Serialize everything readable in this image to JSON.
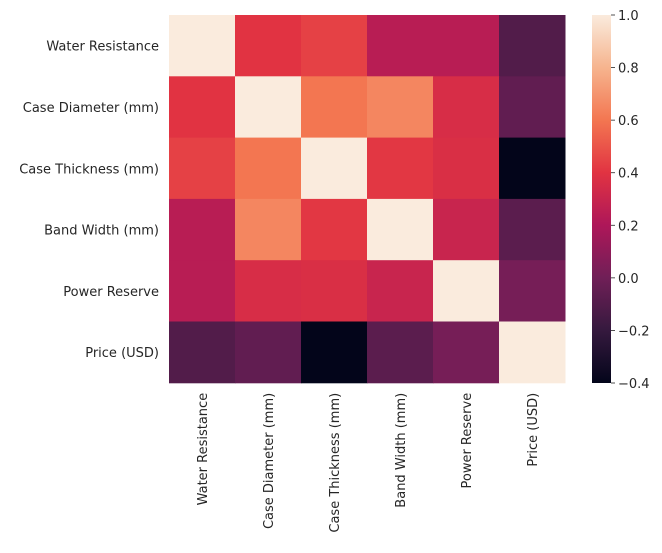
{
  "chart_data": {
    "type": "heatmap",
    "title": "",
    "xlabel": "",
    "ylabel": "",
    "x_categories": [
      "Water Resistance",
      "Case Diameter (mm)",
      "Case Thickness (mm)",
      "Band Width (mm)",
      "Power Reserve",
      "Price (USD)"
    ],
    "y_categories": [
      "Water Resistance",
      "Case Diameter (mm)",
      "Case Thickness (mm)",
      "Band Width (mm)",
      "Power Reserve",
      "Price (USD)"
    ],
    "values": [
      [
        1.0,
        0.4,
        0.44,
        0.24,
        0.24,
        -0.1
      ],
      [
        0.4,
        1.0,
        0.6,
        0.65,
        0.36,
        -0.05
      ],
      [
        0.44,
        0.6,
        1.0,
        0.41,
        0.37,
        -0.4
      ],
      [
        0.24,
        0.65,
        0.41,
        1.0,
        0.3,
        -0.07
      ],
      [
        0.24,
        0.36,
        0.37,
        0.3,
        1.0,
        0.02
      ],
      [
        -0.1,
        -0.05,
        -0.4,
        -0.07,
        0.02,
        1.0
      ]
    ],
    "colorbar": {
      "vmin": -0.4,
      "vmax": 1.0,
      "ticks": [
        "1.0",
        "0.8",
        "0.6",
        "0.4",
        "0.2",
        "0.0",
        "−0.2",
        "−0.4"
      ],
      "tick_values": [
        1.0,
        0.8,
        0.6,
        0.4,
        0.2,
        0.0,
        -0.2,
        -0.4
      ],
      "colormap": "rocket"
    },
    "grid": false,
    "legend": "colorbar-right"
  }
}
